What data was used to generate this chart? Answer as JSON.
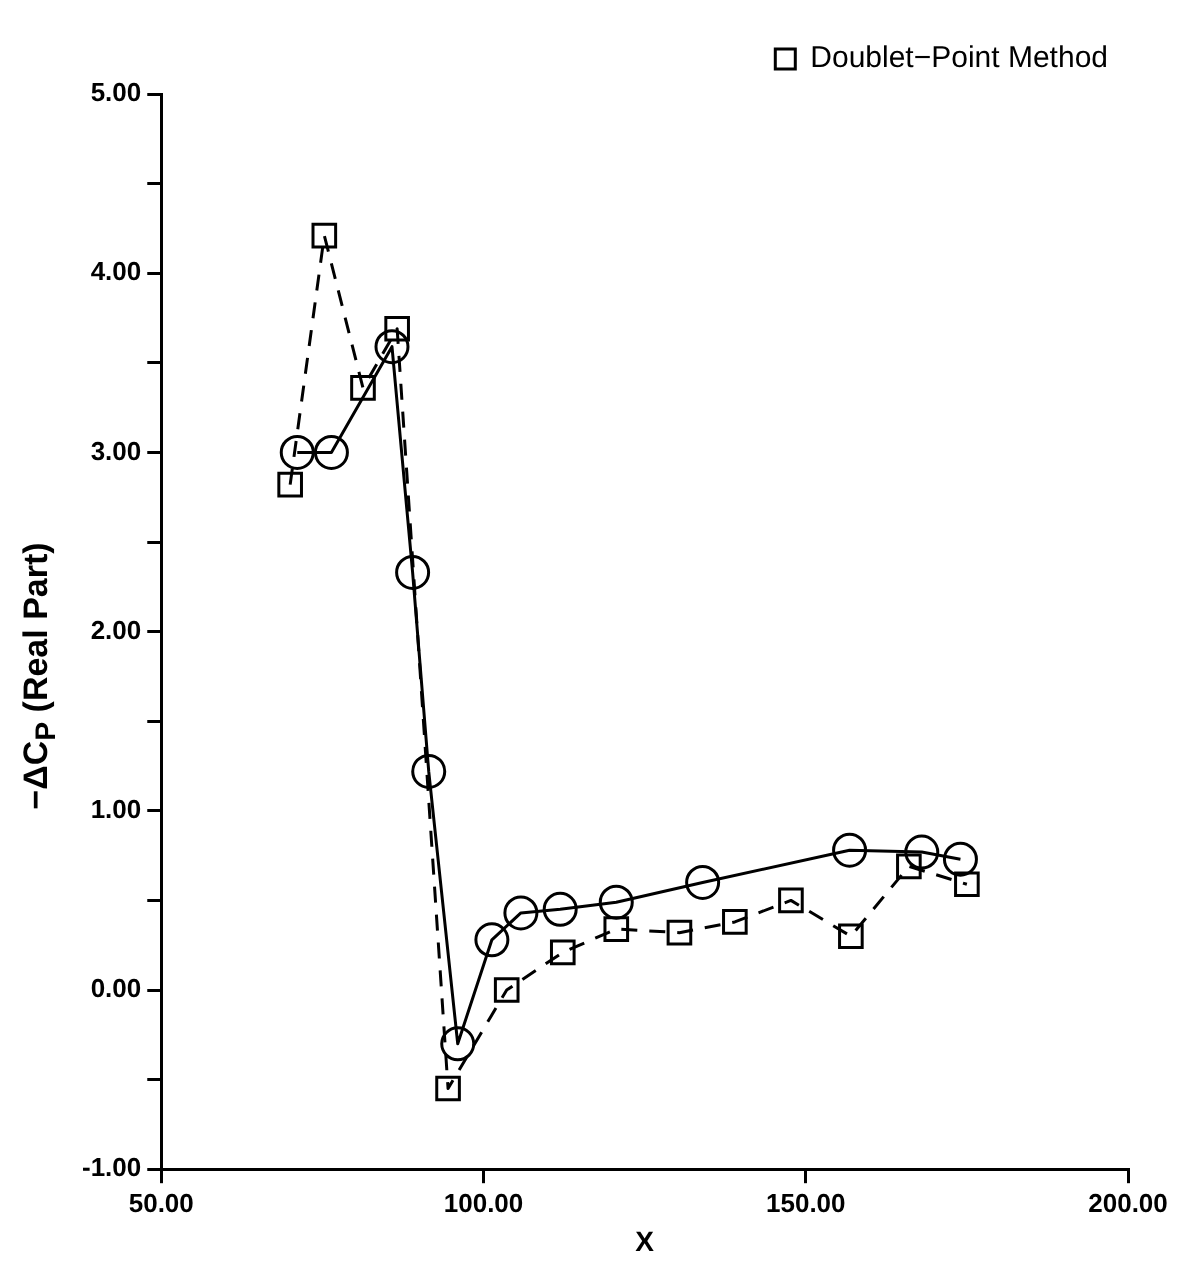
{
  "chart_data": {
    "type": "line",
    "xlabel": "X",
    "ylabel": "−ΔC$_{P}$ (Real Part)",
    "xlim": [
      50,
      200
    ],
    "xticks": [
      {
        "value": 50,
        "label": "50.00"
      },
      {
        "value": 100,
        "label": "100.00"
      },
      {
        "value": 150,
        "label": "150.00"
      },
      {
        "value": 200,
        "label": "200.00"
      }
    ],
    "ylim": [
      -1,
      5
    ],
    "yticks": [
      {
        "value": -1,
        "label": "-1.00"
      },
      {
        "value": -0.5,
        "label": null
      },
      {
        "value": 0,
        "label": "0.00"
      },
      {
        "value": 0.5,
        "label": null
      },
      {
        "value": 1,
        "label": "1.00"
      },
      {
        "value": 1.5,
        "label": null
      },
      {
        "value": 2,
        "label": "2.00"
      },
      {
        "value": 2.5,
        "label": null
      },
      {
        "value": 3,
        "label": "3.00"
      },
      {
        "value": 3.5,
        "label": null
      },
      {
        "value": 4,
        "label": "4.00"
      },
      {
        "value": 4.5,
        "label": null
      },
      {
        "value": 5,
        "label": "5.00"
      }
    ],
    "grid": false,
    "legend": "top right",
    "series": [
      {
        "color": "#000000",
        "marker": "circle",
        "line_style": "solid",
        "x": [
          71.1,
          76.4,
          85.8,
          89,
          91.5,
          96,
          101.3,
          105.8,
          111.9,
          120.6,
          134,
          156.8,
          168,
          174
        ],
        "values": [
          3.0,
          3.0,
          3.59,
          2.33,
          1.22,
          -0.3,
          0.28,
          0.43,
          0.45,
          0.49,
          0.6,
          0.78,
          0.77,
          0.73
        ]
      },
      {
        "name": "Doublet−Point Method",
        "color": "#000000",
        "marker": "square",
        "line_style": "dashed",
        "x": [
          70,
          75.3,
          81.3,
          86.6,
          94.5,
          103.6,
          112.3,
          120.6,
          130.4,
          139,
          147.7,
          157,
          166,
          175
        ],
        "values": [
          2.82,
          4.21,
          3.36,
          3.69,
          -0.55,
          0.0,
          0.21,
          0.34,
          0.32,
          0.38,
          0.5,
          0.3,
          0.69,
          0.59
        ]
      }
    ]
  }
}
